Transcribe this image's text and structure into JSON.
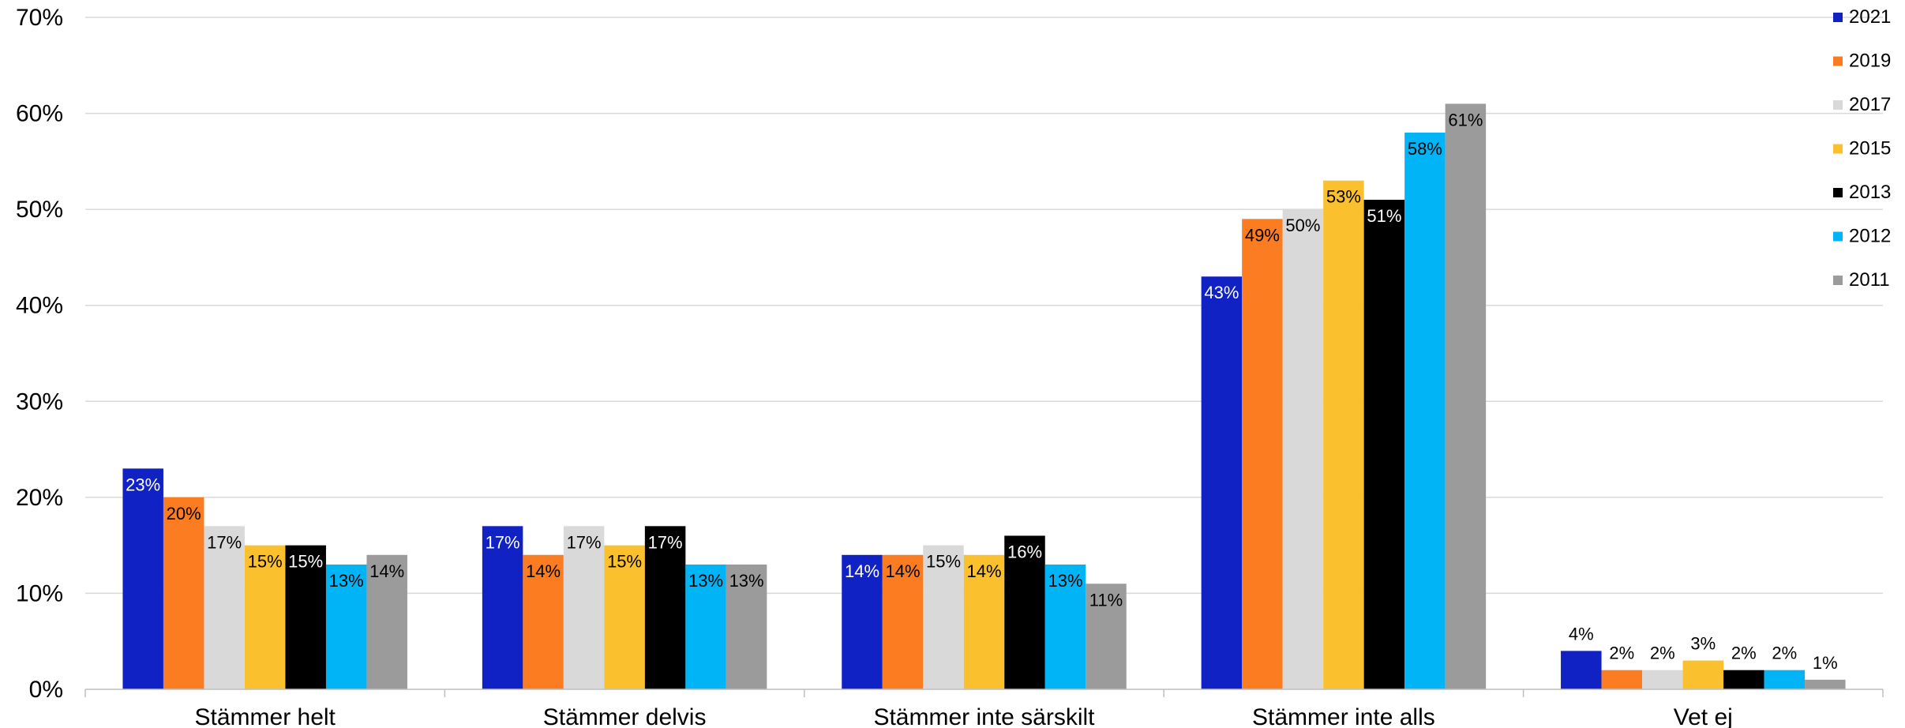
{
  "chart_data": {
    "type": "bar",
    "title": "",
    "xlabel": "",
    "ylabel": "",
    "ylim": [
      0,
      70
    ],
    "y_ticks": [
      "0%",
      "10%",
      "20%",
      "30%",
      "40%",
      "50%",
      "60%",
      "70%"
    ],
    "y_tick_values": [
      0,
      10,
      20,
      30,
      40,
      50,
      60,
      70
    ],
    "grid": true,
    "legend_position": "right",
    "categories": [
      "Stämmer helt",
      "Stämmer delvis",
      "Stämmer inte särskilt",
      "Stämmer inte alls",
      "Vet ej"
    ],
    "series": [
      {
        "name": "2021",
        "color": "#1122c4",
        "label_color": "#ffffff",
        "values": [
          23,
          17,
          14,
          43,
          4
        ],
        "labels": [
          "23%",
          "17%",
          "14%",
          "43%",
          "4%"
        ]
      },
      {
        "name": "2019",
        "color": "#fb7c21",
        "label_color": "#000000",
        "values": [
          20,
          14,
          14,
          49,
          2
        ],
        "labels": [
          "20%",
          "14%",
          "14%",
          "49%",
          "2%"
        ]
      },
      {
        "name": "2017",
        "color": "#d9d9d9",
        "label_color": "#000000",
        "values": [
          17,
          17,
          15,
          50,
          2
        ],
        "labels": [
          "17%",
          "17%",
          "15%",
          "50%",
          "2%"
        ]
      },
      {
        "name": "2015",
        "color": "#fbc02d",
        "label_color": "#000000",
        "values": [
          15,
          15,
          14,
          53,
          3
        ],
        "labels": [
          "15%",
          "15%",
          "14%",
          "53%",
          "3%"
        ]
      },
      {
        "name": "2013",
        "color": "#000000",
        "label_color": "#ffffff",
        "values": [
          15,
          17,
          16,
          51,
          2
        ],
        "labels": [
          "15%",
          "17%",
          "16%",
          "51%",
          "2%"
        ]
      },
      {
        "name": "2012",
        "color": "#00b4f5",
        "label_color": "#000000",
        "values": [
          13,
          13,
          13,
          58,
          2
        ],
        "labels": [
          "13%",
          "13%",
          "13%",
          "58%",
          "2%"
        ]
      },
      {
        "name": "2011",
        "color": "#9b9b9b",
        "label_color": "#000000",
        "values": [
          14,
          13,
          11,
          61,
          1
        ],
        "labels": [
          "14%",
          "13%",
          "11%",
          "61%",
          "1%"
        ]
      }
    ]
  }
}
